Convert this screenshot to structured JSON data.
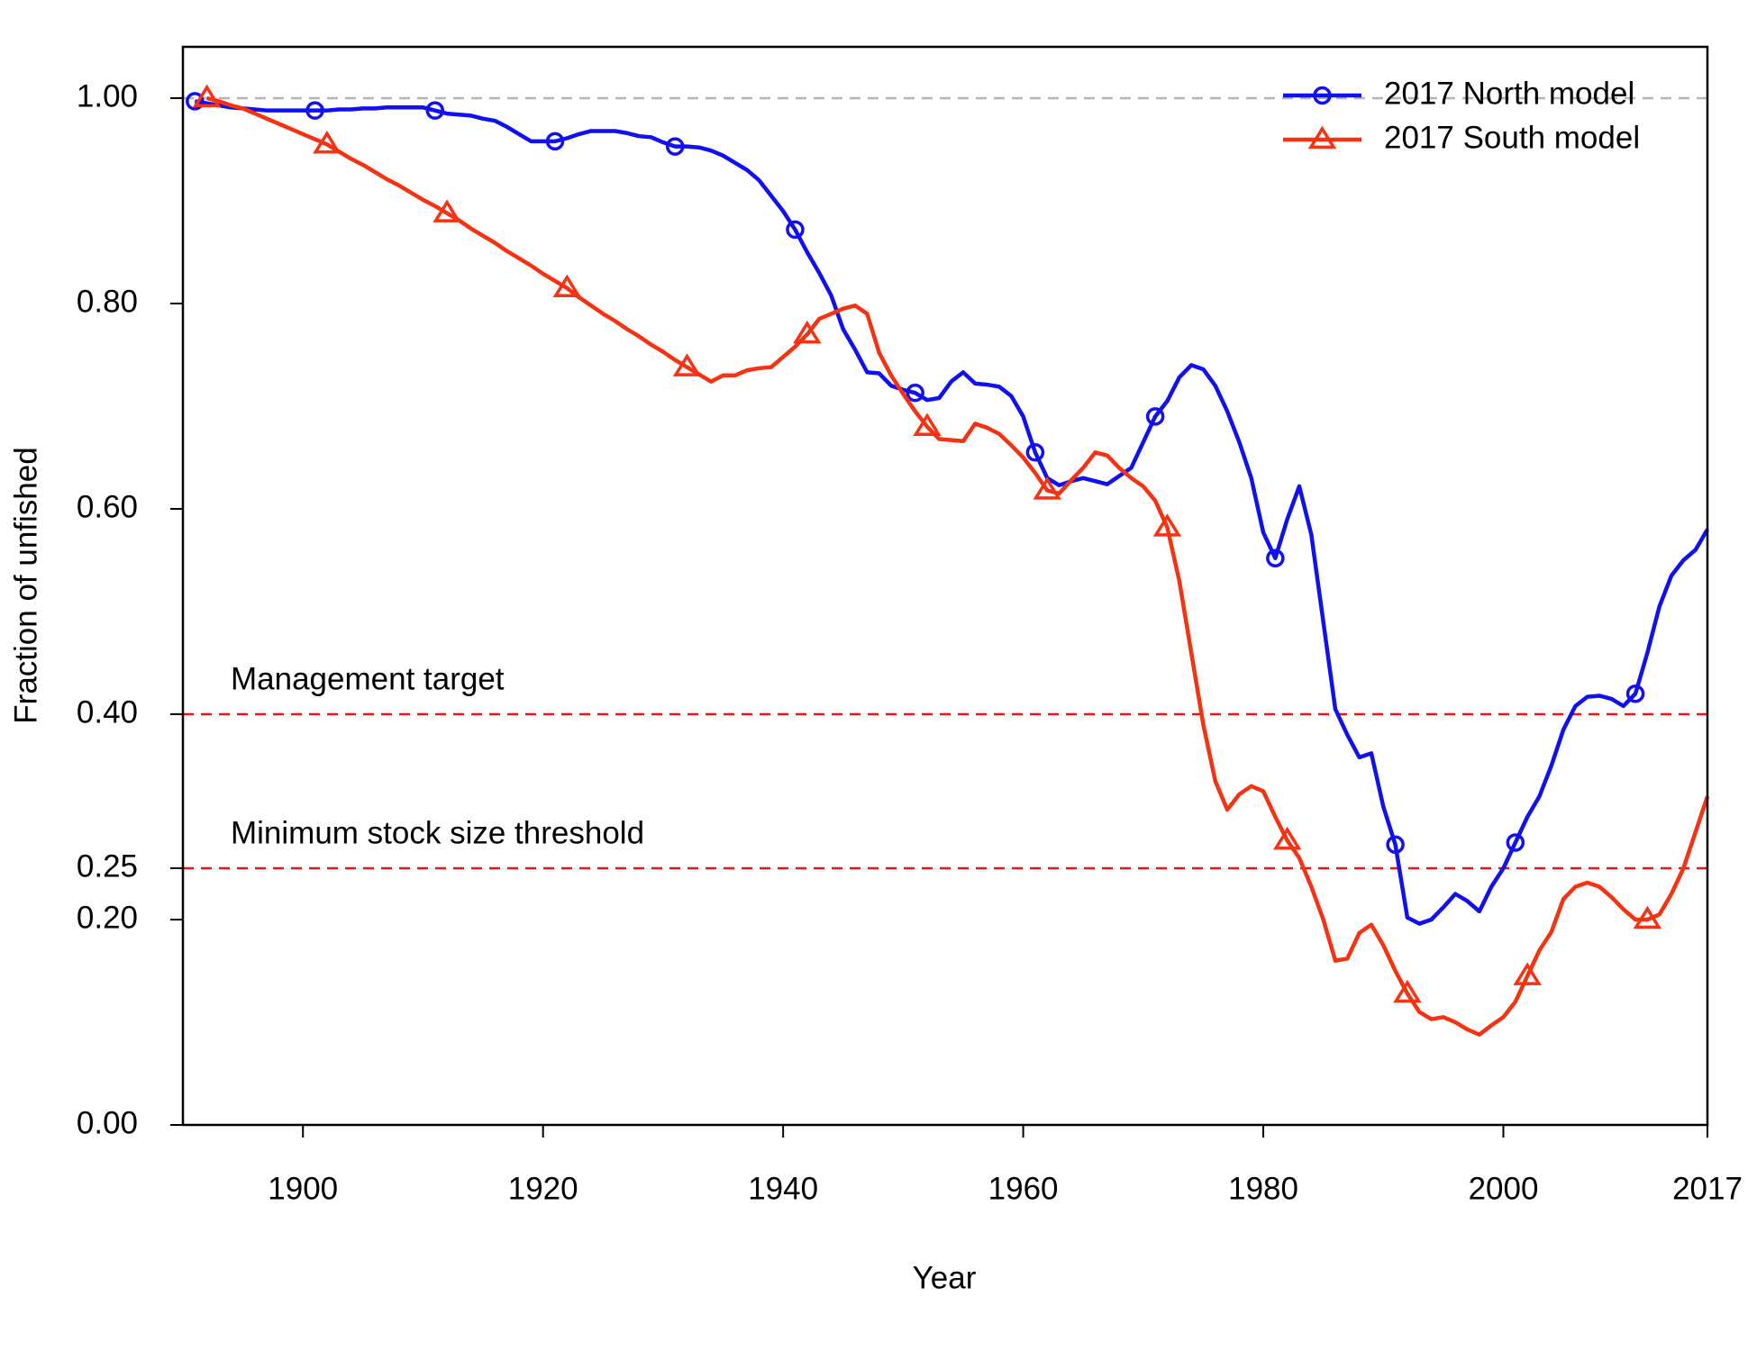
{
  "chart_data": {
    "type": "line",
    "xlabel": "Year",
    "ylabel": "Fraction of unfished",
    "xlim": [
      1890,
      2017
    ],
    "ylim": [
      0,
      1.05
    ],
    "xticks": [
      1900,
      1920,
      1940,
      1960,
      1980,
      2000,
      2017
    ],
    "yticks": [
      {
        "value": 0,
        "label": "0.00"
      },
      {
        "value": 0.2,
        "label": "0.20"
      },
      {
        "value": 0.25,
        "label": "0.25"
      },
      {
        "value": 0.4,
        "label": "0.40"
      },
      {
        "value": 0.6,
        "label": "0.60"
      },
      {
        "value": 0.8,
        "label": "0.80"
      },
      {
        "value": 1,
        "label": "1.00"
      }
    ],
    "legend": "top-right",
    "reference_lines": [
      {
        "value": 1,
        "color": "#b4b4b4"
      },
      {
        "value": 0.4,
        "color": "#ee1111",
        "label": "Management target"
      },
      {
        "value": 0.25,
        "color": "#ee1111",
        "label": "Minimum stock size threshold"
      }
    ],
    "x": [
      1891,
      1892,
      1893,
      1894,
      1895,
      1896,
      1897,
      1898,
      1899,
      1900,
      1901,
      1902,
      1903,
      1904,
      1905,
      1906,
      1907,
      1908,
      1909,
      1910,
      1911,
      1912,
      1913,
      1914,
      1915,
      1916,
      1917,
      1918,
      1919,
      1920,
      1921,
      1922,
      1923,
      1924,
      1925,
      1926,
      1927,
      1928,
      1929,
      1930,
      1931,
      1932,
      1933,
      1934,
      1935,
      1936,
      1937,
      1938,
      1939,
      1940,
      1941,
      1942,
      1943,
      1944,
      1945,
      1946,
      1947,
      1948,
      1949,
      1950,
      1951,
      1952,
      1953,
      1954,
      1955,
      1956,
      1957,
      1958,
      1959,
      1960,
      1961,
      1962,
      1963,
      1964,
      1965,
      1966,
      1967,
      1968,
      1969,
      1970,
      1971,
      1972,
      1973,
      1974,
      1975,
      1976,
      1977,
      1978,
      1979,
      1980,
      1981,
      1982,
      1983,
      1984,
      1985,
      1986,
      1987,
      1988,
      1989,
      1990,
      1991,
      1992,
      1993,
      1994,
      1995,
      1996,
      1997,
      1998,
      1999,
      2000,
      2001,
      2002,
      2003,
      2004,
      2005,
      2006,
      2007,
      2008,
      2009,
      2010,
      2011,
      2012,
      2013,
      2014,
      2015,
      2016,
      2017
    ],
    "series": [
      {
        "name": "2017 North model",
        "color": "#1010f0",
        "marker": "circle",
        "values": [
          0.997,
          0.995,
          0.993,
          0.991,
          0.99,
          0.989,
          0.988,
          0.988,
          0.988,
          0.988,
          0.988,
          0.988,
          0.989,
          0.989,
          0.99,
          0.99,
          0.991,
          0.991,
          0.991,
          0.991,
          0.988,
          0.985,
          0.984,
          0.983,
          0.98,
          0.978,
          0.972,
          0.965,
          0.958,
          0.958,
          0.958,
          0.961,
          0.965,
          0.968,
          0.968,
          0.968,
          0.966,
          0.963,
          0.962,
          0.957,
          0.953,
          0.953,
          0.952,
          0.949,
          0.944,
          0.937,
          0.93,
          0.92,
          0.905,
          0.89,
          0.872,
          0.85,
          0.83,
          0.808,
          0.775,
          0.755,
          0.733,
          0.732,
          0.72,
          0.716,
          0.713,
          0.706,
          0.708,
          0.724,
          0.733,
          0.722,
          0.721,
          0.719,
          0.71,
          0.69,
          0.655,
          0.63,
          0.623,
          0.627,
          0.63,
          0.627,
          0.624,
          0.632,
          0.64,
          0.665,
          0.69,
          0.705,
          0.728,
          0.74,
          0.736,
          0.72,
          0.695,
          0.665,
          0.63,
          0.577,
          0.552,
          0.59,
          0.622,
          0.575,
          0.49,
          0.405,
          0.38,
          0.358,
          0.362,
          0.31,
          0.273,
          0.202,
          0.196,
          0.2,
          0.212,
          0.225,
          0.218,
          0.208,
          0.232,
          0.25,
          0.275,
          0.3,
          0.32,
          0.35,
          0.385,
          0.408,
          0.417,
          0.418,
          0.415,
          0.408,
          0.42,
          0.46,
          0.505,
          0.535,
          0.55,
          0.56,
          0.58
        ]
      },
      {
        "name": "2017 South model",
        "color": "#f53212",
        "marker": "triangle",
        "values": [
          null,
          1.0,
          0.997,
          0.993,
          0.99,
          0.985,
          0.98,
          0.975,
          0.97,
          0.965,
          0.96,
          0.955,
          0.948,
          0.941,
          0.935,
          0.928,
          0.921,
          0.915,
          0.908,
          0.901,
          0.895,
          0.888,
          0.881,
          0.873,
          0.866,
          0.859,
          0.851,
          0.844,
          0.837,
          0.829,
          0.822,
          0.815,
          0.806,
          0.798,
          0.79,
          0.783,
          0.775,
          0.768,
          0.76,
          0.753,
          0.745,
          0.738,
          0.731,
          0.724,
          0.73,
          0.73,
          0.735,
          0.737,
          0.738,
          0.748,
          0.758,
          0.77,
          0.785,
          0.79,
          0.795,
          0.798,
          0.79,
          0.752,
          0.73,
          0.712,
          0.695,
          0.68,
          0.668,
          0.667,
          0.666,
          0.683,
          0.679,
          0.673,
          0.662,
          0.65,
          0.635,
          0.618,
          0.615,
          0.628,
          0.64,
          0.655,
          0.652,
          0.64,
          0.63,
          0.622,
          0.608,
          0.582,
          0.53,
          0.46,
          0.39,
          0.335,
          0.307,
          0.322,
          0.33,
          0.325,
          0.3,
          0.277,
          0.26,
          0.232,
          0.2,
          0.16,
          0.162,
          0.187,
          0.195,
          0.175,
          0.15,
          0.128,
          0.11,
          0.103,
          0.105,
          0.1,
          0.093,
          0.088,
          0.097,
          0.105,
          0.12,
          0.145,
          0.17,
          0.188,
          0.22,
          0.232,
          0.236,
          0.232,
          0.222,
          0.21,
          0.2,
          0.2,
          0.205,
          0.225,
          0.25,
          0.285,
          0.32
        ]
      }
    ]
  }
}
